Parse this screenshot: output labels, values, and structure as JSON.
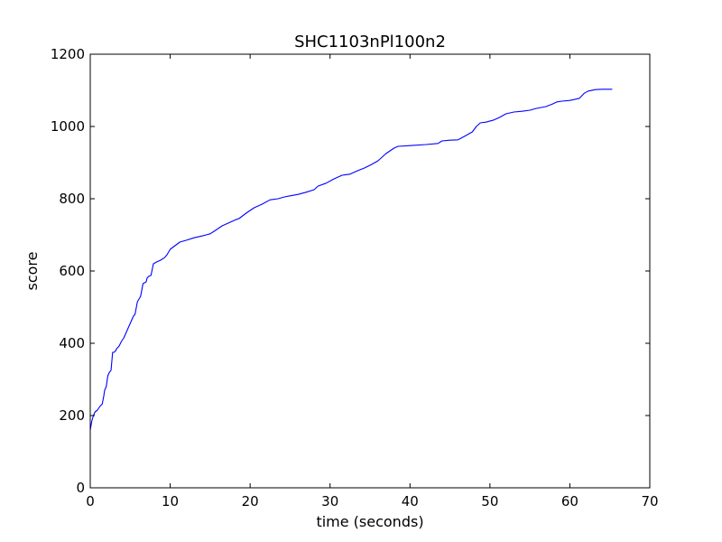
{
  "chart_data": {
    "type": "line",
    "title": "SHC1103nPl100n2",
    "xlabel": "time (seconds)",
    "ylabel": "score",
    "xlim": [
      0,
      70
    ],
    "ylim": [
      0,
      1200
    ],
    "xticks": [
      0,
      10,
      20,
      30,
      40,
      50,
      60,
      70
    ],
    "yticks": [
      0,
      200,
      400,
      600,
      800,
      1000,
      1200
    ],
    "grid": false,
    "line_color": "#0000ff",
    "series": [
      {
        "x": [
          0.0,
          0.2,
          0.4,
          0.6,
          0.9,
          1.2,
          1.5,
          1.7,
          1.8,
          2.0,
          2.2,
          2.4,
          2.6,
          2.8,
          3.0,
          3.2,
          3.3,
          3.6,
          3.9,
          4.2,
          4.5,
          4.9,
          5.2,
          5.4,
          5.6,
          5.9,
          6.3,
          6.6,
          7.0,
          7.1,
          7.3,
          7.6,
          7.9,
          8.3,
          8.8,
          9.3,
          9.6,
          10.0,
          10.6,
          11.2,
          12.0,
          13.0,
          14.0,
          14.5,
          15.0,
          15.5,
          16.5,
          17.5,
          18.2,
          18.6,
          19.5,
          20.5,
          21.5,
          22.5,
          23.5,
          24.3,
          25.0,
          26.0,
          27.0,
          28.0,
          28.5,
          29.5,
          30.5,
          31.5,
          32.5,
          33.5,
          34.3,
          35.2,
          36.0,
          37.0,
          38.0,
          38.5,
          40.0,
          42.0,
          43.5,
          44.0,
          45.0,
          46.0,
          47.0,
          47.8,
          48.3,
          48.8,
          49.5,
          50.5,
          51.2,
          52.0,
          53.0,
          54.0,
          55.0,
          55.8,
          57.0,
          57.8,
          58.4,
          59.0,
          60.0,
          61.2,
          61.8,
          62.3,
          63.2,
          64.0,
          65.3
        ],
        "y": [
          160,
          185,
          200,
          210,
          215,
          225,
          232,
          255,
          270,
          280,
          310,
          320,
          325,
          375,
          375,
          380,
          385,
          392,
          405,
          415,
          430,
          450,
          465,
          475,
          480,
          515,
          530,
          565,
          570,
          580,
          585,
          588,
          620,
          625,
          630,
          637,
          645,
          660,
          670,
          680,
          685,
          692,
          697,
          700,
          703,
          710,
          725,
          735,
          742,
          745,
          760,
          775,
          785,
          797,
          800,
          805,
          808,
          812,
          818,
          825,
          835,
          843,
          855,
          865,
          868,
          878,
          885,
          895,
          905,
          925,
          940,
          945,
          947,
          950,
          953,
          960,
          962,
          963,
          975,
          985,
          1000,
          1010,
          1012,
          1018,
          1025,
          1035,
          1040,
          1042,
          1045,
          1050,
          1055,
          1062,
          1068,
          1070,
          1072,
          1078,
          1092,
          1098,
          1102,
          1103,
          1103
        ]
      }
    ]
  }
}
